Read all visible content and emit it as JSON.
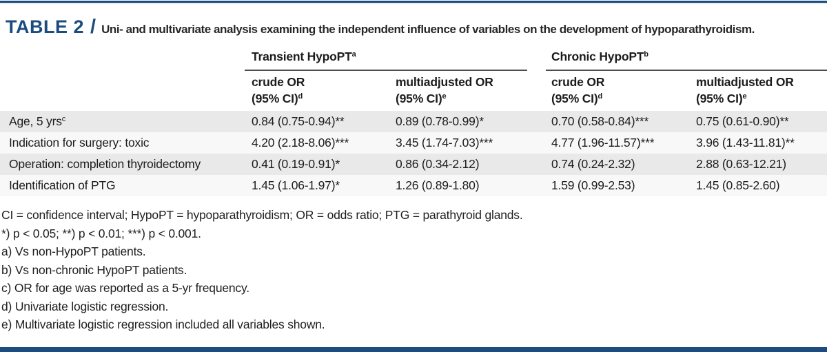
{
  "header": {
    "table_tag": "TABLE 2",
    "separator": "/",
    "caption": "Uni- and multivariate analysis examining the independent influence of variables on the development of hypoparathyroidism."
  },
  "table": {
    "groups": [
      {
        "label": "Transient HypoPT",
        "sup": "a"
      },
      {
        "label": "Chronic HypoPT",
        "sup": "b"
      }
    ],
    "columns": [
      {
        "line1": "crude OR",
        "line2": "(95% CI)",
        "sup": "d"
      },
      {
        "line1": "multiadjusted OR",
        "line2": "(95% CI)",
        "sup": "e"
      },
      {
        "line1": "crude OR",
        "line2": "(95% CI)",
        "sup": "d"
      },
      {
        "line1": "multiadjusted OR",
        "line2": "(95% CI)",
        "sup": "e"
      }
    ],
    "rows": [
      {
        "label": "Age, 5 yrs",
        "sup": "c",
        "values": [
          "0.84 (0.75-0.94)**",
          "0.89 (0.78-0.99)*",
          "0.70 (0.58-0.84)***",
          "0.75 (0.61-0.90)**"
        ]
      },
      {
        "label": "Indication for surgery: toxic",
        "sup": "",
        "values": [
          "4.20 (2.18-8.06)***",
          "3.45 (1.74-7.03)***",
          "4.77 (1.96-11.57)***",
          "3.96 (1.43-11.81)**"
        ]
      },
      {
        "label": "Operation: completion thyroidectomy",
        "sup": "",
        "values": [
          "0.41 (0.19-0.91)*",
          "0.86 (0.34-2.12)",
          "0.74 (0.24-2.32)",
          "2.88 (0.63-12.21)"
        ]
      },
      {
        "label": "Identification of PTG",
        "sup": "",
        "values": [
          "1.45 (1.06-1.97)*",
          "1.26 (0.89-1.80)",
          "1.59 (0.99-2.53)",
          "1.45 (0.85-2.60)"
        ]
      }
    ]
  },
  "footnotes": [
    "CI = confidence interval; HypoPT = hypoparathyroidism; OR = odds ratio; PTG = parathyroid glands.",
    "*) p < 0.05; **) p < 0.01; ***) p < 0.001.",
    "a) Vs non-HypoPT patients.",
    "b) Vs non-chronic HypoPT patients.",
    "c) OR for age was reported as a 5-yr frequency.",
    "d) Univariate logistic regression.",
    "e) Multivariate logistic regression included all variables shown."
  ],
  "colors": {
    "accent_navy": "#1b4b7f",
    "rule_gray": "#4d4d4d",
    "stripe_gray": "#e9e9e9",
    "stripe_light": "#f8f8f8"
  }
}
